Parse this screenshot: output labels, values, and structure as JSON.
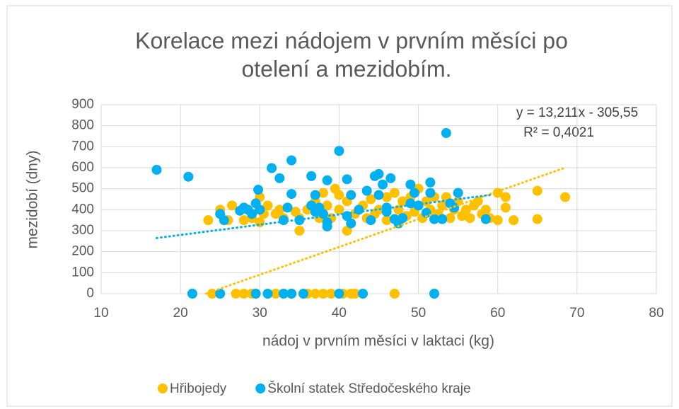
{
  "chart_data": {
    "type": "scatter",
    "title": [
      "Korelace mezi nádojem v prvním měsíci po",
      "otelení a mezidobím."
    ],
    "x_label": "nádoj v prvním měsíci v laktaci (kg)",
    "y_label": "mezidobí (dny)",
    "annotations": [
      "y = 13,211x - 305,55",
      "R² = 0,4021"
    ],
    "xlim": [
      10,
      80
    ],
    "xticks": [
      10,
      20,
      30,
      40,
      50,
      60,
      70,
      80
    ],
    "ylim": [
      0,
      900
    ],
    "yticks": [
      0,
      100,
      200,
      300,
      400,
      500,
      600,
      700,
      800,
      900
    ],
    "grid": true,
    "legend": "bottom",
    "series": [
      {
        "name": "Hřibojedy",
        "color": "#ffc000",
        "x": [
          23.5,
          24,
          25,
          26,
          26.5,
          27,
          28,
          28,
          29,
          29,
          30,
          30,
          30.5,
          31,
          32,
          32,
          32.5,
          33,
          34,
          34.5,
          35,
          35,
          36,
          36,
          37,
          37,
          37.5,
          38,
          38,
          38.5,
          39,
          39,
          39.5,
          40,
          40,
          40.5,
          41,
          41,
          41.5,
          42,
          42,
          43,
          43.5,
          44,
          44.5,
          45,
          46,
          46,
          47,
          47,
          47.5,
          48,
          48.5,
          49,
          49.5,
          50,
          50.5,
          51,
          51.5,
          52,
          52.5,
          53,
          53.5,
          54,
          54.5,
          55,
          55.5,
          56,
          56.5,
          57,
          57.5,
          58,
          58.5,
          59,
          60,
          60,
          61,
          61,
          62,
          65,
          65,
          68.5
        ],
        "values": [
          350,
          0,
          400,
          350,
          420,
          0,
          350,
          0,
          360,
          0,
          340,
          460,
          380,
          420,
          0,
          380,
          400,
          360,
          0,
          390,
          300,
          360,
          400,
          0,
          0,
          440,
          360,
          0,
          480,
          420,
          360,
          0,
          500,
          400,
          470,
          0,
          300,
          440,
          0,
          380,
          0,
          420,
          360,
          450,
          380,
          400,
          460,
          350,
          0,
          480,
          400,
          440,
          370,
          460,
          390,
          500,
          360,
          440,
          400,
          460,
          380,
          420,
          460,
          360,
          400,
          440,
          370,
          400,
          360,
          420,
          440,
          380,
          400,
          360,
          480,
          350,
          410,
          460,
          350,
          490,
          355,
          460
        ],
        "trend": {
          "x": [
            23.2,
            68.5
          ],
          "values": [
            0,
            600
          ]
        }
      },
      {
        "name": "Školní statek Středočeského kraje",
        "color": "#00b0f0",
        "x": [
          17,
          21,
          21.5,
          25,
          25.5,
          25,
          27.5,
          28,
          28.5,
          29,
          29.5,
          29.8,
          30,
          29.5,
          31,
          31.5,
          32.5,
          33,
          33,
          33.5,
          34,
          34,
          34,
          35,
          35.5,
          36.5,
          36.5,
          37,
          37,
          37.5,
          38,
          38.5,
          38.5,
          38.5,
          40,
          40,
          41,
          41,
          41.5,
          41.5,
          42.5,
          43,
          43.5,
          44,
          44.5,
          45,
          45,
          45.5,
          46,
          46,
          46.5,
          47,
          47.5,
          48,
          49,
          49,
          49.5,
          50,
          51,
          51.5,
          51.5,
          52,
          52,
          53,
          53.5,
          54,
          54.5,
          55,
          58.5
        ],
        "values": [
          590,
          557,
          0,
          380,
          350,
          0,
          395,
          410,
          400,
          380,
          430,
          495,
          400,
          0,
          0,
          598,
          550,
          350,
          0,
          410,
          635,
          475,
          0,
          350,
          0,
          560,
          420,
          470,
          390,
          410,
          380,
          340,
          320,
          540,
          680,
          0,
          545,
          370,
          470,
          335,
          400,
          0,
          490,
          350,
          560,
          570,
          470,
          520,
          410,
          390,
          550,
          355,
          335,
          360,
          520,
          430,
          480,
          420,
          385,
          530,
          480,
          355,
          0,
          355,
          765,
          430,
          410,
          480,
          355
        ],
        "trend": {
          "x": [
            17,
            59
          ],
          "values": [
            265,
            470
          ]
        }
      }
    ]
  }
}
